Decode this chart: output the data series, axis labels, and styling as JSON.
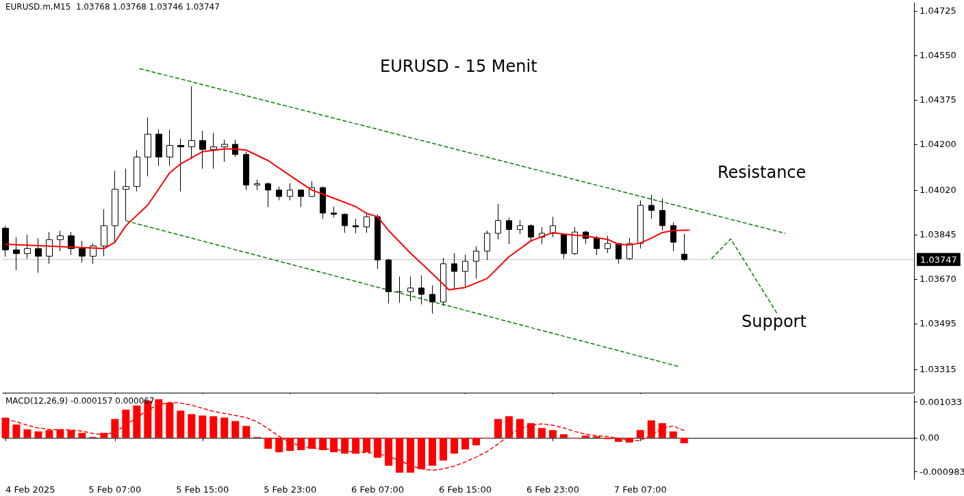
{
  "chart_data": [
    {
      "type": "candlestick",
      "title": "EURUSD - 15 Menit",
      "tick_labels": "y",
      "annotations": [
        "EURUSD.m,M15  1.03768 1.03768 1.03746 1.03747",
        "Resistance",
        "Support"
      ],
      "x": [
        "2025-02-04T21:00",
        "2025-02-04T22:00",
        "2025-02-04T23:00",
        "2025-02-05T00:00",
        "2025-02-05T01:00",
        "2025-02-05T02:00",
        "2025-02-05T03:00",
        "2025-02-05T04:00",
        "2025-02-05T05:00",
        "2025-02-05T06:00",
        "2025-02-05T07:00",
        "2025-02-05T08:00",
        "2025-02-05T09:00",
        "2025-02-05T10:00",
        "2025-02-05T11:00",
        "2025-02-05T12:00",
        "2025-02-05T13:00",
        "2025-02-05T14:00",
        "2025-02-05T15:00",
        "2025-02-05T16:00",
        "2025-02-05T17:00",
        "2025-02-05T18:00",
        "2025-02-05T19:00",
        "2025-02-05T20:00",
        "2025-02-05T21:00",
        "2025-02-05T22:00",
        "2025-02-05T23:00",
        "2025-02-06T00:00",
        "2025-02-06T01:00",
        "2025-02-06T02:00",
        "2025-02-06T03:00",
        "2025-02-06T04:00",
        "2025-02-06T05:00",
        "2025-02-06T06:00",
        "2025-02-06T07:00",
        "2025-02-06T08:00",
        "2025-02-06T09:00",
        "2025-02-06T10:00",
        "2025-02-06T11:00",
        "2025-02-06T12:00",
        "2025-02-06T13:00",
        "2025-02-06T14:00",
        "2025-02-06T15:00",
        "2025-02-06T16:00",
        "2025-02-06T17:00",
        "2025-02-06T18:00",
        "2025-02-06T19:00",
        "2025-02-06T20:00",
        "2025-02-06T21:00",
        "2025-02-06T22:00",
        "2025-02-06T23:00",
        "2025-02-07T00:00",
        "2025-02-07T01:00",
        "2025-02-07T02:00",
        "2025-02-07T03:00",
        "2025-02-07T04:00",
        "2025-02-07T05:00",
        "2025-02-07T06:00",
        "2025-02-07T07:00",
        "2025-02-07T08:00",
        "2025-02-07T09:00",
        "2025-02-07T10:00",
        "2025-02-07T11:00"
      ],
      "ohlc": [
        [
          1.0387,
          1.0388,
          1.03758,
          1.03785
        ],
        [
          1.03785,
          1.03835,
          1.03705,
          1.0377
        ],
        [
          1.0377,
          1.03845,
          1.0375,
          1.0379
        ],
        [
          1.0379,
          1.0383,
          1.03695,
          1.0376
        ],
        [
          1.0376,
          1.03855,
          1.0373,
          1.03825
        ],
        [
          1.03825,
          1.0386,
          1.0378,
          1.0384
        ],
        [
          1.0384,
          1.03855,
          1.03765,
          1.0379
        ],
        [
          1.0379,
          1.0382,
          1.03735,
          1.0376
        ],
        [
          1.0376,
          1.0381,
          1.0373,
          1.038
        ],
        [
          1.038,
          1.03945,
          1.0376,
          1.0388
        ],
        [
          1.0388,
          1.04096,
          1.03815,
          1.04023
        ],
        [
          1.04023,
          1.04104,
          1.03901,
          1.04034
        ],
        [
          1.04034,
          1.04177,
          1.04015,
          1.0415
        ],
        [
          1.0415,
          1.04306,
          1.04074,
          1.0424
        ],
        [
          1.0424,
          1.0426,
          1.04115,
          1.0415
        ],
        [
          1.0415,
          1.04258,
          1.04115,
          1.04196
        ],
        [
          1.04196,
          1.04222,
          1.04015,
          1.0419
        ],
        [
          1.0419,
          1.04428,
          1.04142,
          1.04215
        ],
        [
          1.04215,
          1.04253,
          1.04104,
          1.0418
        ],
        [
          1.0418,
          1.04245,
          1.04104,
          1.0419
        ],
        [
          1.0419,
          1.04218,
          1.04131,
          1.042
        ],
        [
          1.042,
          1.04218,
          1.0415,
          1.0416
        ],
        [
          1.0416,
          1.0417,
          1.0402,
          1.0404
        ],
        [
          1.0404,
          1.04061,
          1.0402,
          1.04045
        ],
        [
          1.04045,
          1.0405,
          1.03953,
          1.0402
        ],
        [
          1.0402,
          1.04034,
          1.0398,
          1.03995
        ],
        [
          1.03995,
          1.04047,
          1.0398,
          1.0402
        ],
        [
          1.0402,
          1.04023,
          1.03953,
          1.03995
        ],
        [
          1.03995,
          1.04055,
          1.03993,
          1.0403
        ],
        [
          1.0403,
          1.04034,
          1.03907,
          1.0393
        ],
        [
          1.0393,
          1.03955,
          1.03912,
          1.03925
        ],
        [
          1.03925,
          1.03928,
          1.03852,
          1.0388
        ],
        [
          1.0388,
          1.03907,
          1.0385,
          1.03875
        ],
        [
          1.03875,
          1.03928,
          1.03852,
          1.03915
        ],
        [
          1.03915,
          1.03925,
          1.0371,
          1.03745
        ],
        [
          1.03745,
          1.0375,
          1.03574,
          1.0362
        ],
        [
          1.0362,
          1.0368,
          1.03577,
          1.0362
        ],
        [
          1.0362,
          1.0368,
          1.03583,
          1.03635
        ],
        [
          1.03635,
          1.03685,
          1.0357,
          1.0361
        ],
        [
          1.0361,
          1.03645,
          1.03534,
          1.0358
        ],
        [
          1.0358,
          1.03753,
          1.03564,
          1.0373
        ],
        [
          1.0373,
          1.03772,
          1.03628,
          1.037
        ],
        [
          1.037,
          1.03766,
          1.03636,
          1.0374
        ],
        [
          1.0374,
          1.03799,
          1.03672,
          1.0378
        ],
        [
          1.0378,
          1.03861,
          1.03745,
          1.0385
        ],
        [
          1.0385,
          1.03966,
          1.03826,
          1.039
        ],
        [
          1.039,
          1.03912,
          1.03807,
          1.03865
        ],
        [
          1.03865,
          1.03901,
          1.03847,
          1.0388
        ],
        [
          1.0388,
          1.03885,
          1.03818,
          1.03835
        ],
        [
          1.03835,
          1.03874,
          1.03807,
          1.0385
        ],
        [
          1.0385,
          1.03915,
          1.03834,
          1.0388
        ],
        [
          1.03845,
          1.03845,
          1.0375,
          1.0377
        ],
        [
          1.0377,
          1.03874,
          1.03765,
          1.03855
        ],
        [
          1.03855,
          1.0386,
          1.03807,
          1.0383
        ],
        [
          1.0383,
          1.0384,
          1.03764,
          1.0379
        ],
        [
          1.0379,
          1.0384,
          1.03772,
          1.0381
        ],
        [
          1.0381,
          1.0381,
          1.03731,
          1.0375
        ],
        [
          1.0375,
          1.03832,
          1.03745,
          1.0381
        ],
        [
          1.0381,
          1.0398,
          1.0379,
          1.0396
        ],
        [
          1.0396,
          1.04001,
          1.03907,
          1.0394
        ],
        [
          1.0394,
          1.03988,
          1.03861,
          1.0388
        ],
        [
          1.0388,
          1.03893,
          1.0378,
          1.03815
        ],
        [
          1.03768,
          1.03848,
          1.0374,
          1.03747
        ]
      ],
      "series": [
        {
          "type": "line",
          "color": "#ff0000",
          "x": [
            "2025-02-04T21:00",
            "2025-02-05T06:00",
            "2025-02-05T07:00",
            "2025-02-05T08:00",
            "2025-02-05T10:00",
            "2025-02-05T12:00",
            "2025-02-05T13:00",
            "2025-02-05T15:00",
            "2025-02-05T17:00",
            "2025-02-05T18:00",
            "2025-02-05T19:00",
            "2025-02-05T21:00",
            "2025-02-05T23:00",
            "2025-02-06T01:00",
            "2025-02-06T03:00",
            "2025-02-06T05:00",
            "2025-02-06T06:00",
            "2025-02-06T07:00",
            "2025-02-06T08:00",
            "2025-02-06T10:00",
            "2025-02-06T12:00",
            "2025-02-06T13:30",
            "2025-02-06T15:00",
            "2025-02-06T17:00",
            "2025-02-06T19:00",
            "2025-02-06T21:00",
            "2025-02-06T23:00",
            "2025-02-07T00:00",
            "2025-02-07T02:00",
            "2025-02-07T04:00",
            "2025-02-07T05:00",
            "2025-02-07T06:00",
            "2025-02-07T07:00",
            "2025-02-07T08:00",
            "2025-02-07T09:00",
            "2025-02-07T10:00",
            "2025-02-07T11:30"
          ],
          "values": [
            1.03807,
            1.0379,
            1.03815,
            1.0388,
            1.03961,
            1.04088,
            1.04123,
            1.04171,
            1.04182,
            1.04182,
            1.04177,
            1.04136,
            1.04077,
            1.0402,
            1.03988,
            1.03955,
            1.03928,
            1.03915,
            1.03861,
            1.03772,
            1.03691,
            1.03628,
            1.03637,
            1.03672,
            1.03758,
            1.0382,
            1.03853,
            1.03847,
            1.03839,
            1.03826,
            1.03807,
            1.03804,
            1.03812,
            1.03831,
            1.03853,
            1.03861,
            1.03863
          ]
        },
        {
          "type": "line",
          "color": "#008000",
          "line_style": "dashed",
          "x": [
            "2025-02-05T09:15",
            "2025-02-07T20:15"
          ],
          "values": [
            1.04498,
            1.0385
          ]
        },
        {
          "type": "line",
          "color": "#008000",
          "line_style": "dashed",
          "x": [
            "2025-02-05T08:00",
            "2025-02-07T10:30"
          ],
          "values": [
            1.03899,
            1.03326
          ]
        },
        {
          "type": "line",
          "color": "#008000",
          "line_style": "dashed",
          "x": [
            "2025-02-07T13:30",
            "2025-02-07T15:15",
            "2025-02-07T19:30"
          ],
          "values": [
            1.0375,
            1.03828,
            1.03534
          ]
        }
      ],
      "ref_lines": [
        {
          "axis": "y",
          "value": 1.03747,
          "label": "1.03747",
          "color": "#c0c0c0"
        }
      ],
      "xlim": [
        "2025-02-04T20:45",
        "2025-02-08T08:00"
      ],
      "xticks": [
        {
          "value": "2025-02-04T21:00",
          "label": null
        },
        {
          "value": "2025-02-05T07:00",
          "label": null
        },
        {
          "value": "2025-02-05T15:00",
          "label": null
        },
        {
          "value": "2025-02-05T23:00",
          "label": null
        },
        {
          "value": "2025-02-06T07:00",
          "label": null
        },
        {
          "value": "2025-02-06T15:00",
          "label": null
        },
        {
          "value": "2025-02-06T23:00",
          "label": null
        },
        {
          "value": "2025-02-07T07:00",
          "label": null
        }
      ],
      "ylim": [
        1.03223,
        1.04757
      ],
      "yticks": [
        1.03315,
        1.03495,
        {
          "value": 1.0367,
          "label": "1.03670"
        },
        1.03845,
        {
          "value": 1.0402,
          "label": "1.04020"
        },
        {
          "value": 1.042,
          "label": "1.04200"
        },
        1.04375,
        {
          "value": 1.0455,
          "label": "1.04550"
        },
        1.04725
      ]
    },
    {
      "type": "bar",
      "annotations": [
        "MACD(12,26,9) -0.000157 0.000067"
      ],
      "x": [
        "2025-02-04T21:00",
        "2025-02-04T22:00",
        "2025-02-04T23:00",
        "2025-02-05T00:00",
        "2025-02-05T01:00",
        "2025-02-05T02:00",
        "2025-02-05T03:00",
        "2025-02-05T04:00",
        "2025-02-05T05:00",
        "2025-02-05T06:00",
        "2025-02-05T07:00",
        "2025-02-05T08:00",
        "2025-02-05T09:00",
        "2025-02-05T10:00",
        "2025-02-05T11:00",
        "2025-02-05T12:00",
        "2025-02-05T13:00",
        "2025-02-05T14:00",
        "2025-02-05T15:00",
        "2025-02-05T16:00",
        "2025-02-05T17:00",
        "2025-02-05T18:00",
        "2025-02-05T19:00",
        "2025-02-05T20:00",
        "2025-02-05T21:00",
        "2025-02-05T22:00",
        "2025-02-05T23:00",
        "2025-02-06T00:00",
        "2025-02-06T01:00",
        "2025-02-06T02:00",
        "2025-02-06T03:00",
        "2025-02-06T04:00",
        "2025-02-06T05:00",
        "2025-02-06T06:00",
        "2025-02-06T07:00",
        "2025-02-06T08:00",
        "2025-02-06T09:00",
        "2025-02-06T10:00",
        "2025-02-06T11:00",
        "2025-02-06T12:00",
        "2025-02-06T13:00",
        "2025-02-06T14:00",
        "2025-02-06T15:00",
        "2025-02-06T16:00",
        "2025-02-06T17:00",
        "2025-02-06T18:00",
        "2025-02-06T19:00",
        "2025-02-06T20:00",
        "2025-02-06T21:00",
        "2025-02-06T22:00",
        "2025-02-06T23:00",
        "2025-02-07T00:00",
        "2025-02-07T01:00",
        "2025-02-07T02:00",
        "2025-02-07T03:00",
        "2025-02-07T04:00",
        "2025-02-07T05:00",
        "2025-02-07T06:00",
        "2025-02-07T07:00",
        "2025-02-07T08:00",
        "2025-02-07T09:00",
        "2025-02-07T10:00",
        "2025-02-07T11:00"
      ],
      "series": [
        {
          "type": "bar",
          "color": "#ff0000",
          "values": [
            0.00058,
            0.00038,
            0.00024,
            0.00018,
            0.00022,
            0.00024,
            0.00022,
            0.00014,
            2e-05,
            0.00014,
            0.00054,
            0.00081,
            0.00093,
            0.00107,
            0.00111,
            0.00101,
            0.00078,
            0.00068,
            0.00064,
            0.00062,
            0.00058,
            0.00048,
            0.00034,
            2e-05,
            -0.00032,
            -0.00042,
            -0.00038,
            -0.00036,
            -0.00032,
            -0.00036,
            -0.00042,
            -0.00046,
            -0.00046,
            -0.00042,
            -0.00058,
            -0.00081,
            -0.00101,
            -0.00101,
            -0.00091,
            -0.00081,
            -0.00066,
            -0.00046,
            -0.00034,
            -0.00022,
            -2e-05,
            0.00054,
            0.00062,
            0.00054,
            0.00042,
            0.00028,
            0.00022,
            0.0001,
            -2e-05,
            6e-05,
            4e-05,
            -4e-05,
            -0.00012,
            -0.00014,
            0.00022,
            0.0005,
            0.00042,
            0.00018,
            -0.00016
          ]
        },
        {
          "type": "line",
          "color": "#ff0000",
          "line_style": "dashed",
          "values": [
            0.00054,
            0.00046,
            0.00036,
            0.00028,
            0.00024,
            0.00023,
            0.00022,
            0.00019,
            0.00012,
            8e-05,
            0.00016,
            0.00036,
            0.00058,
            0.0008,
            0.00095,
            0.00102,
            0.001,
            0.00094,
            0.00085,
            0.00076,
            0.0007,
            0.00064,
            0.00058,
            0.00046,
            0.00026,
            4e-05,
            -0.00014,
            -0.00024,
            -0.0003,
            -0.00032,
            -0.00034,
            -0.00038,
            -0.00042,
            -0.00043,
            -0.00046,
            -0.00054,
            -0.00066,
            -0.0008,
            -0.0009,
            -0.00094,
            -0.0009,
            -0.00082,
            -0.0007,
            -0.00056,
            -0.0004,
            -0.00018,
            6e-05,
            0.00026,
            0.00036,
            0.0004,
            0.00036,
            0.00028,
            0.00018,
            0.0001,
            6e-05,
            3e-05,
            -2e-05,
            -8e-05,
            -8e-05,
            8e-05,
            0.00026,
            0.00034,
            0.0002
          ]
        }
      ],
      "xlim": [
        "2025-02-04T20:45",
        "2025-02-08T08:00"
      ],
      "xticks": [
        {
          "value": "2025-02-04T21:00",
          "label": "4 Feb 2025"
        },
        {
          "value": "2025-02-05T07:00",
          "label": "5 Feb 07:00"
        },
        {
          "value": "2025-02-05T15:00",
          "label": "5 Feb 15:00"
        },
        {
          "value": "2025-02-05T23:00",
          "label": "5 Feb 23:00"
        },
        {
          "value": "2025-02-06T07:00",
          "label": "6 Feb 07:00"
        },
        {
          "value": "2025-02-06T15:00",
          "label": "6 Feb 15:00"
        },
        {
          "value": "2025-02-06T23:00",
          "label": "6 Feb 23:00"
        },
        {
          "value": "2025-02-07T07:00",
          "label": "7 Feb 07:00"
        }
      ],
      "ylim": [
        -0.00121,
        0.00122
      ],
      "yticks": [
        0.001033,
        {
          "value": 0,
          "label": "0.00"
        },
        -0.000983
      ]
    }
  ]
}
